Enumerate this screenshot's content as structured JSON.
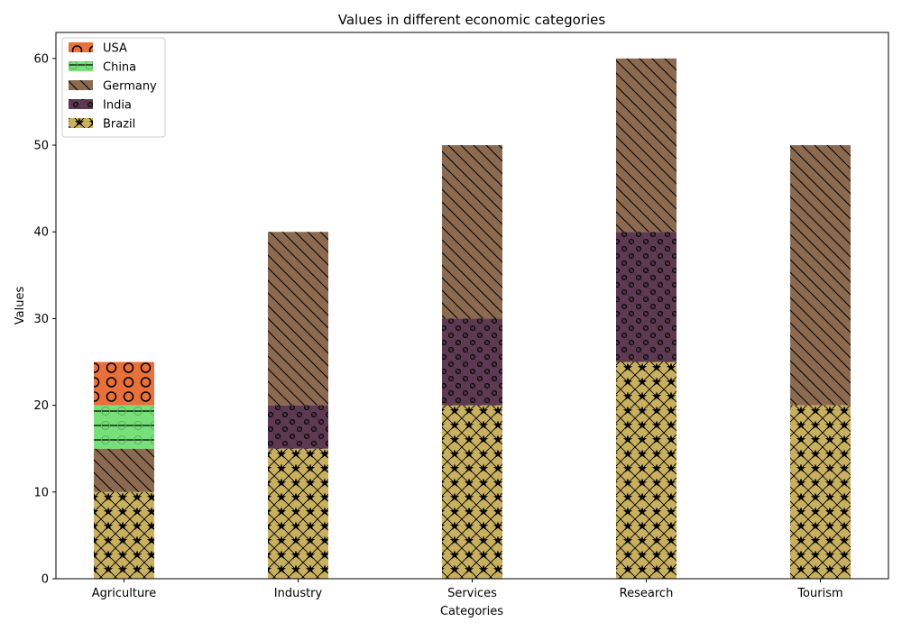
{
  "chart_data": {
    "type": "bar",
    "stacked": true,
    "title": "Values in different economic categories",
    "xlabel": "Categories",
    "ylabel": "Values",
    "ylim": [
      0,
      63
    ],
    "yticks": [
      0,
      10,
      20,
      30,
      40,
      50,
      60
    ],
    "categories": [
      "Agriculture",
      "Industry",
      "Services",
      "Research",
      "Tourism"
    ],
    "grid": false,
    "legend_position": "top-left",
    "stack_order_bottom_to_top": [
      "Brazil",
      "India",
      "Germany",
      "China",
      "USA"
    ],
    "series": [
      {
        "name": "USA",
        "color": "#e8703a",
        "values": [
          5,
          0,
          0,
          0,
          0
        ]
      },
      {
        "name": "China",
        "color": "#78e07a",
        "values": [
          5,
          0,
          0,
          0,
          0
        ]
      },
      {
        "name": "Germany",
        "color": "#8b6a50",
        "values": [
          5,
          20,
          20,
          20,
          30
        ]
      },
      {
        "name": "India",
        "color": "#5e3a52",
        "values": [
          0,
          5,
          10,
          15,
          0
        ]
      },
      {
        "name": "Brazil",
        "color": "#c8b060",
        "values": [
          10,
          15,
          20,
          25,
          20
        ]
      }
    ]
  }
}
